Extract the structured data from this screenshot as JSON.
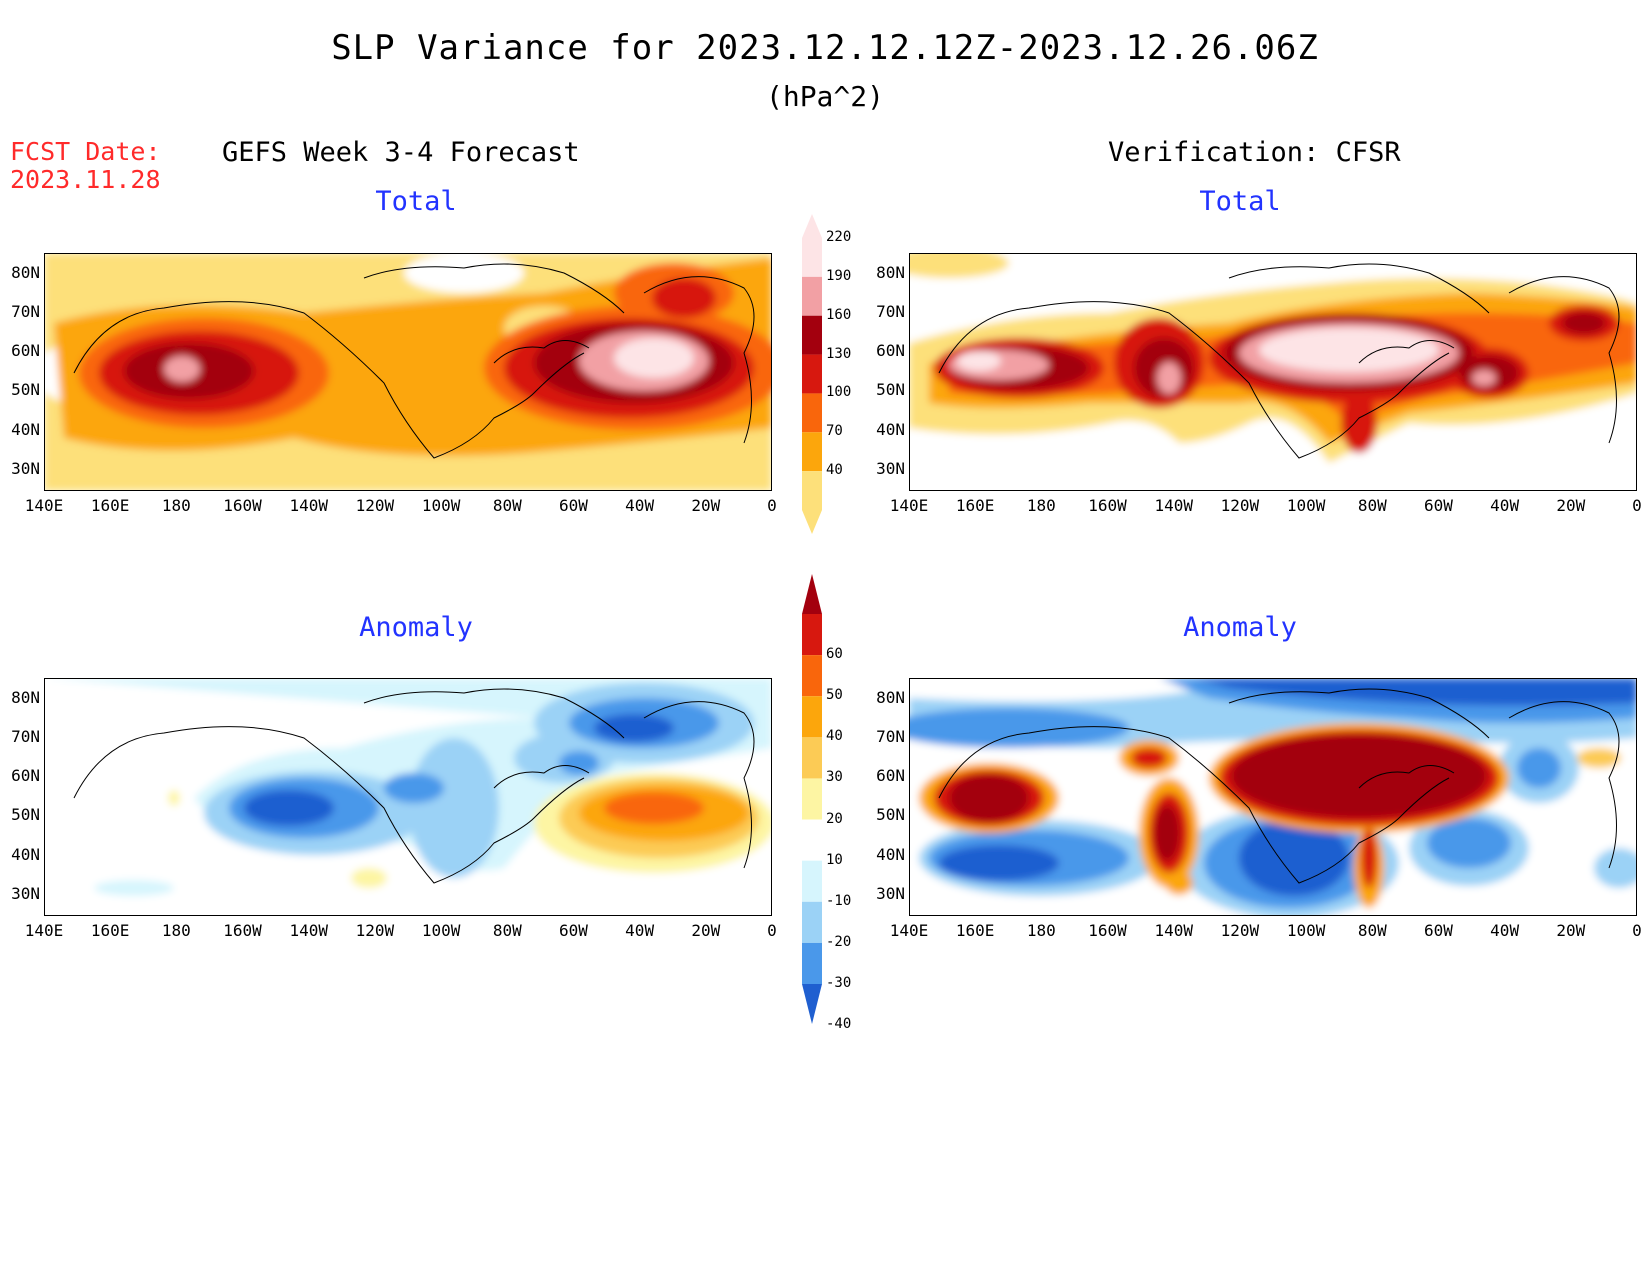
{
  "header": {
    "title": "SLP Variance for 2023.12.12.12Z-2023.12.26.06Z",
    "units": "(hPa^2)",
    "fcst_date_label": "FCST Date:",
    "fcst_date": "2023.11.28"
  },
  "columns": {
    "left_title": "GEFS Week 3-4 Forecast",
    "right_title": "Verification: CFSR"
  },
  "panels": {
    "forecast_total": "Total",
    "verify_total": "Total",
    "forecast_anomaly": "Anomaly",
    "verify_anomaly": "Anomaly"
  },
  "axes": {
    "lat_labels": [
      "80N",
      "70N",
      "60N",
      "50N",
      "40N",
      "30N"
    ],
    "lon_labels": [
      "140E",
      "160E",
      "180",
      "160W",
      "140W",
      "120W",
      "100W",
      "80W",
      "60W",
      "40W",
      "20W",
      "0"
    ]
  },
  "total_colorbar": {
    "levels": [
      "220",
      "190",
      "160",
      "130",
      "100",
      "70",
      "40"
    ],
    "colors": [
      "#fde4e6",
      "#f2a0a4",
      "#a3000e",
      "#d7180f",
      "#f9660c",
      "#fca60c",
      "#fde07a"
    ]
  },
  "anomaly_colorbar": {
    "levels": [
      "60",
      "50",
      "40",
      "30",
      "20",
      "10",
      "-10",
      "-20",
      "-30",
      "-40"
    ],
    "colors": [
      "#a3000e",
      "#d7180f",
      "#f9660c",
      "#fca60c",
      "#fccb55",
      "#fdf5a3",
      "#ffffff",
      "#d6f5fd",
      "#9bd2f6",
      "#4a98ea",
      "#1f5fd0"
    ]
  }
}
